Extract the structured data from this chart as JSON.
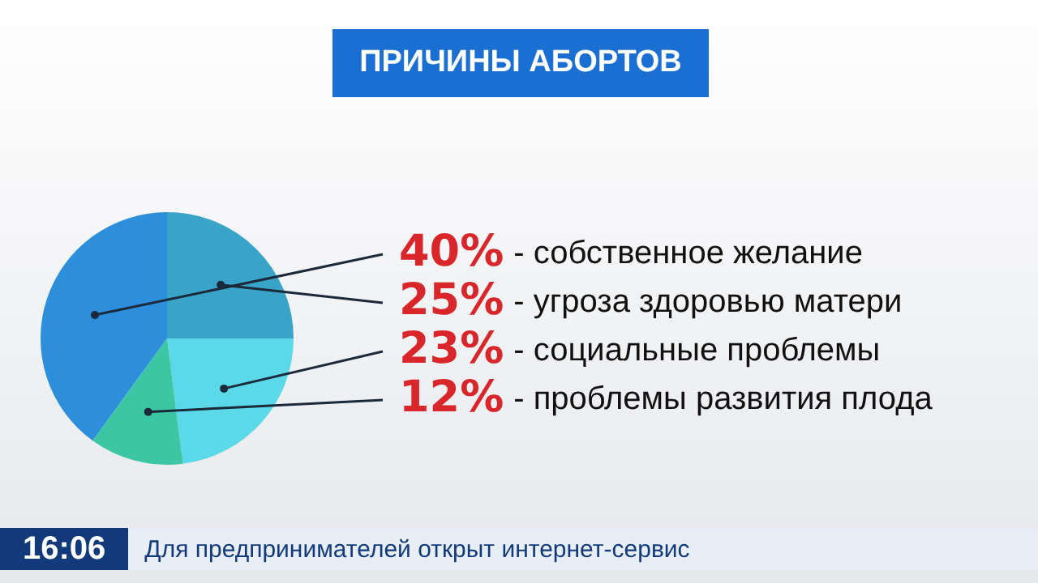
{
  "chart_data": {
    "type": "pie",
    "title": "ПРИЧИНЫ АБОРТОВ",
    "categories": [
      "- собственное желание",
      "- угроза здоровью матери",
      "- социальные проблемы",
      "- проблемы развития плода"
    ],
    "values": [
      40,
      25,
      23,
      12
    ],
    "value_labels": [
      "40%",
      "25%",
      "23%",
      "12%"
    ],
    "colors": [
      "#2d8fdc",
      "#3aa3c8",
      "#5cd9e8",
      "#3cc6a4"
    ],
    "legend": false,
    "annotations": [
      "16:06",
      "Для предпринимателей открыт интернет-сервис"
    ]
  }
}
